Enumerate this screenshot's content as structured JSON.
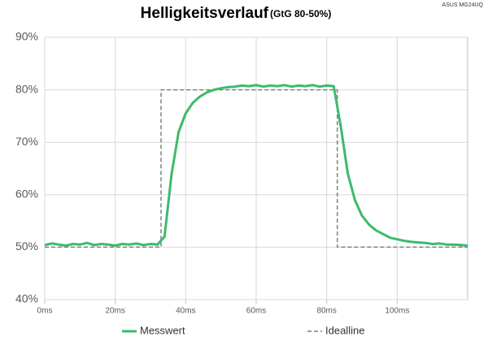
{
  "chart_data": {
    "type": "line",
    "title": "Helligkeitsverlauf",
    "subtitle": "(GtG 80-50%)",
    "annotation": "ASUS MG24UQ",
    "xlim": [
      0,
      120
    ],
    "xticks": [
      {
        "value": 0,
        "label": "0ms"
      },
      {
        "value": 20,
        "label": "20ms"
      },
      {
        "value": 40,
        "label": "40ms"
      },
      {
        "value": 60,
        "label": "60ms"
      },
      {
        "value": 80,
        "label": "80ms"
      },
      {
        "value": 100,
        "label": "100ms"
      }
    ],
    "ylim": [
      40,
      90
    ],
    "yticks": [
      {
        "value": 40,
        "label": "40%"
      },
      {
        "value": 50,
        "label": "50%"
      },
      {
        "value": 60,
        "label": "60%"
      },
      {
        "value": 70,
        "label": "70%"
      },
      {
        "value": 80,
        "label": "80%"
      },
      {
        "value": 90,
        "label": "90%"
      }
    ],
    "grid": true,
    "series": [
      {
        "name": "Idealline",
        "color": "#7f7f7f",
        "dashed": true,
        "x": [
          0,
          33,
          33,
          83,
          83,
          120
        ],
        "values": [
          50,
          50,
          80,
          80,
          50,
          50
        ]
      },
      {
        "name": "Messwert",
        "color": "#3cba6c",
        "dashed": false,
        "x": [
          0,
          2,
          4,
          6,
          8,
          10,
          12,
          14,
          16,
          18,
          20,
          22,
          24,
          26,
          28,
          30,
          32,
          34,
          36,
          38,
          40,
          42,
          44,
          46,
          48,
          50,
          52,
          54,
          56,
          58,
          60,
          62,
          64,
          66,
          68,
          70,
          72,
          74,
          76,
          78,
          80,
          82,
          84,
          86,
          88,
          90,
          92,
          94,
          96,
          98,
          100,
          102,
          104,
          106,
          108,
          110,
          112,
          114,
          116,
          118,
          120
        ],
        "values": [
          50.4,
          50.7,
          50.5,
          50.3,
          50.6,
          50.5,
          50.8,
          50.4,
          50.6,
          50.5,
          50.3,
          50.6,
          50.5,
          50.7,
          50.4,
          50.6,
          50.5,
          52,
          64,
          72,
          75.5,
          77.5,
          78.7,
          79.5,
          80,
          80.3,
          80.5,
          80.6,
          80.8,
          80.7,
          80.9,
          80.6,
          80.8,
          80.7,
          80.9,
          80.6,
          80.8,
          80.7,
          80.9,
          80.6,
          80.8,
          80.7,
          73,
          64,
          59,
          56,
          54.3,
          53.2,
          52.5,
          51.8,
          51.5,
          51.2,
          51,
          50.9,
          50.8,
          50.6,
          50.7,
          50.5,
          50.5,
          50.4,
          50.3
        ]
      }
    ]
  }
}
